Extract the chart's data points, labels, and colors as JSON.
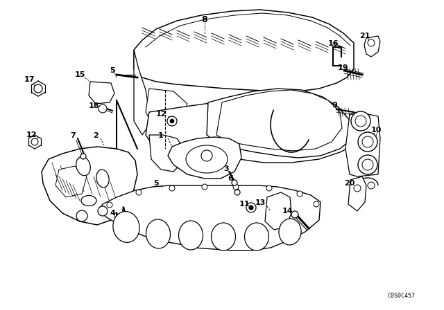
{
  "bg_color": "#ffffff",
  "line_color": "#000000",
  "diagram_id": "C0S0C457",
  "fig_width": 6.4,
  "fig_height": 4.48,
  "dpi": 100,
  "label_entries": [
    [
      "8",
      295,
      30
    ],
    [
      "17",
      42,
      115
    ],
    [
      "15",
      118,
      107
    ],
    [
      "5",
      162,
      102
    ],
    [
      "18",
      138,
      153
    ],
    [
      "12",
      50,
      196
    ],
    [
      "7",
      108,
      196
    ],
    [
      "2",
      142,
      196
    ],
    [
      "1",
      238,
      198
    ],
    [
      "12",
      238,
      168
    ],
    [
      "3",
      335,
      248
    ],
    [
      "6",
      338,
      260
    ],
    [
      "5",
      230,
      268
    ],
    [
      "4",
      168,
      310
    ],
    [
      "11",
      358,
      304
    ],
    [
      "13",
      380,
      298
    ],
    [
      "14",
      418,
      310
    ],
    [
      "9",
      492,
      155
    ],
    [
      "10",
      538,
      192
    ],
    [
      "16",
      488,
      65
    ],
    [
      "21",
      530,
      55
    ],
    [
      "19",
      498,
      100
    ],
    [
      "20",
      510,
      268
    ]
  ],
  "leader_lines": [
    [
      50,
      122,
      62,
      130
    ],
    [
      128,
      115,
      138,
      128
    ],
    [
      172,
      108,
      175,
      120
    ],
    [
      148,
      160,
      152,
      165
    ],
    [
      58,
      202,
      68,
      210
    ],
    [
      118,
      202,
      125,
      210
    ],
    [
      152,
      202,
      162,
      210
    ],
    [
      248,
      204,
      248,
      215
    ],
    [
      248,
      174,
      252,
      182
    ],
    [
      345,
      254,
      348,
      262
    ],
    [
      178,
      316,
      182,
      325
    ],
    [
      365,
      308,
      368,
      315
    ],
    [
      392,
      304,
      398,
      312
    ],
    [
      428,
      314,
      432,
      322
    ],
    [
      498,
      161,
      494,
      168
    ],
    [
      544,
      198,
      538,
      205
    ],
    [
      496,
      72,
      498,
      80
    ],
    [
      538,
      62,
      540,
      70
    ],
    [
      506,
      106,
      505,
      114
    ],
    [
      516,
      274,
      518,
      282
    ]
  ]
}
